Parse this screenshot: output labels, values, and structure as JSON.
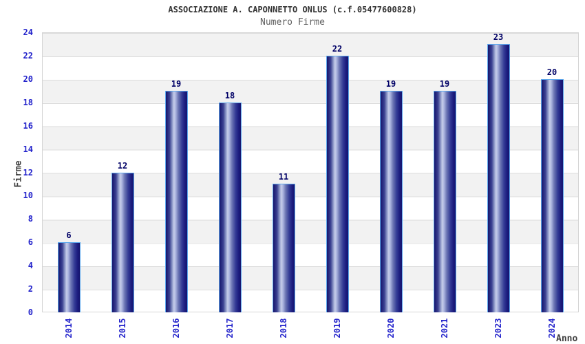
{
  "chart_data": {
    "type": "bar",
    "title": "ASSOCIAZIONE A. CAPONNETTO ONLUS (c.f.05477600828)",
    "subtitle": "Numero Firme",
    "xlabel": "Anno",
    "ylabel": "Firme",
    "categories": [
      "2014",
      "2015",
      "2016",
      "2017",
      "2018",
      "2019",
      "2020",
      "2021",
      "2023",
      "2024"
    ],
    "values": [
      6,
      12,
      19,
      18,
      11,
      22,
      19,
      19,
      23,
      20
    ],
    "ylim": [
      0,
      24
    ],
    "yticks": [
      0,
      2,
      4,
      6,
      8,
      10,
      12,
      14,
      16,
      18,
      20,
      22,
      24
    ],
    "grid": "horizontal gridlines with alternating gray/white bands every 2 units",
    "legend": "none",
    "value_labels": "above each bar",
    "style": {
      "tick_label_color": "#2323cb",
      "value_label_color": "#000066",
      "title_color": "#333333",
      "subtitle_color": "#606060",
      "axis_label_color": "#404040",
      "band_gray": "#f2f2f2",
      "band_white": "#ffffff",
      "gridline_color": "#dcdcdc",
      "plot_border_color": "#d4d4d4",
      "bar_border_color": "#5ea9ee",
      "bar_gradient": [
        {
          "color": "#15156d",
          "pos": "0%"
        },
        {
          "color": "#3c4292",
          "pos": "18%"
        },
        {
          "color": "#8f9ac9",
          "pos": "30%"
        },
        {
          "color": "#c6cdea",
          "pos": "38%"
        },
        {
          "color": "#aab3de",
          "pos": "46%"
        },
        {
          "color": "#6d77b5",
          "pos": "58%"
        },
        {
          "color": "#343c96",
          "pos": "75%"
        },
        {
          "color": "#1b1b7e",
          "pos": "90%"
        },
        {
          "color": "#15156d",
          "pos": "100%"
        }
      ]
    }
  }
}
